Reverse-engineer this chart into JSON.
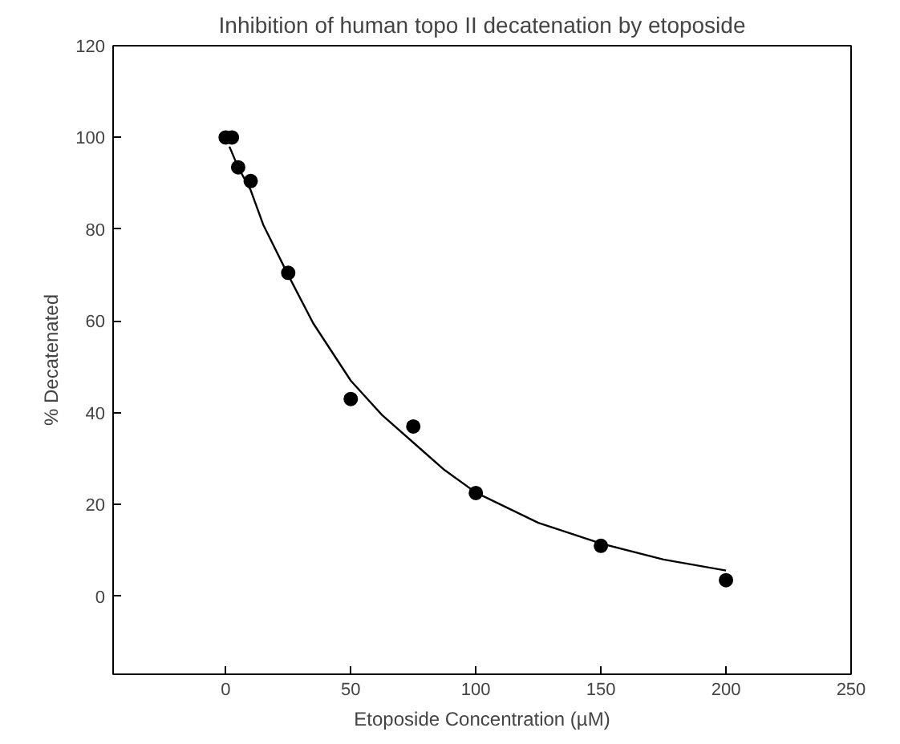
{
  "chart_data": {
    "type": "scatter",
    "title": "Inhibition of human topo II decatenation by etoposide",
    "xlabel": "Etoposide Concentration (µM)",
    "ylabel": "% Decatenated",
    "xlim": [
      -45,
      250
    ],
    "ylim": [
      -17,
      120
    ],
    "xticks": [
      0,
      50,
      100,
      150,
      200,
      250
    ],
    "yticks": [
      0,
      20,
      40,
      60,
      80,
      100,
      120
    ],
    "grid": false,
    "series": [
      {
        "marker": "circle",
        "color": "#000000",
        "x": [
          0,
          2.5,
          5,
          10,
          25,
          50,
          75,
          100,
          150,
          200
        ],
        "values": [
          100,
          100,
          93.5,
          90.5,
          70.5,
          43,
          37,
          22.5,
          11,
          3.5
        ]
      },
      {
        "type": "line",
        "color": "#000000",
        "line_style": "solid",
        "x": [
          1.5,
          5,
          10,
          15,
          25,
          35,
          50,
          62.5,
          75,
          87.5,
          100,
          125,
          150,
          175,
          200
        ],
        "values": [
          98,
          93.5,
          88.5,
          81,
          70,
          59.5,
          47,
          39.5,
          33.5,
          27.5,
          22.6,
          16,
          11.5,
          8,
          5.6
        ]
      }
    ]
  }
}
